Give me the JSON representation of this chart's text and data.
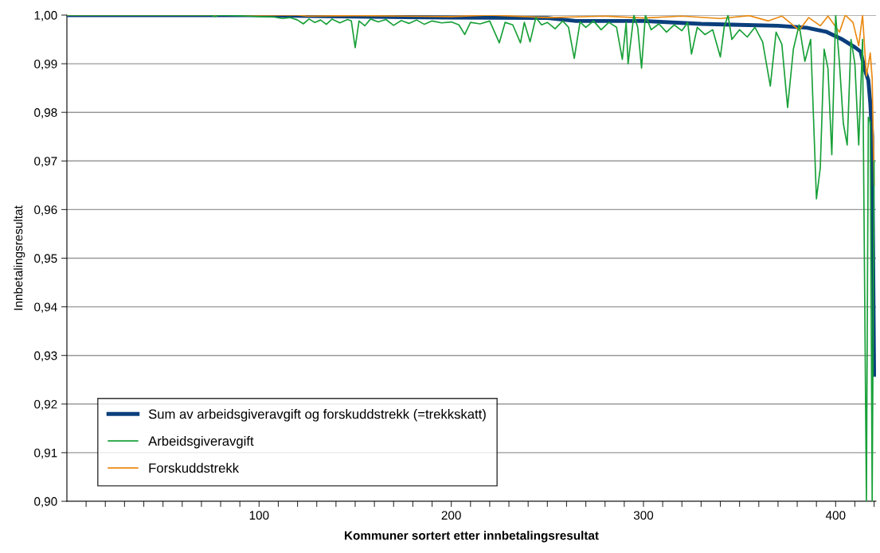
{
  "chart_data": {
    "type": "line",
    "xlabel": "Kommuner sortert etter innbetalingsresultat",
    "ylabel": "Innbetalingsresultat",
    "xlim": [
      0,
      421
    ],
    "xticks": [
      {
        "value": 10,
        "label": null
      },
      {
        "value": 20,
        "label": null
      },
      {
        "value": 30,
        "label": null
      },
      {
        "value": 40,
        "label": null
      },
      {
        "value": 50,
        "label": null
      },
      {
        "value": 60,
        "label": null
      },
      {
        "value": 70,
        "label": null
      },
      {
        "value": 80,
        "label": null
      },
      {
        "value": 90,
        "label": null
      },
      100,
      {
        "value": 110,
        "label": null
      },
      {
        "value": 120,
        "label": null
      },
      {
        "value": 130,
        "label": null
      },
      {
        "value": 140,
        "label": null
      },
      {
        "value": 150,
        "label": null
      },
      {
        "value": 160,
        "label": null
      },
      {
        "value": 170,
        "label": null
      },
      {
        "value": 180,
        "label": null
      },
      {
        "value": 190,
        "label": null
      },
      200,
      {
        "value": 210,
        "label": null
      },
      {
        "value": 220,
        "label": null
      },
      {
        "value": 230,
        "label": null
      },
      {
        "value": 240,
        "label": null
      },
      {
        "value": 250,
        "label": null
      },
      {
        "value": 260,
        "label": null
      },
      {
        "value": 270,
        "label": null
      },
      {
        "value": 280,
        "label": null
      },
      {
        "value": 290,
        "label": null
      },
      300,
      {
        "value": 310,
        "label": null
      },
      {
        "value": 320,
        "label": null
      },
      {
        "value": 330,
        "label": null
      },
      {
        "value": 340,
        "label": null
      },
      {
        "value": 350,
        "label": null
      },
      {
        "value": 360,
        "label": null
      },
      {
        "value": 370,
        "label": null
      },
      {
        "value": 380,
        "label": null
      },
      {
        "value": 390,
        "label": null
      },
      400,
      {
        "value": 410,
        "label": null
      },
      {
        "value": 420,
        "label": null
      }
    ],
    "ylim": [
      0.9,
      1.0
    ],
    "yticks": [
      {
        "value": 0.9,
        "label": "0,90"
      },
      {
        "value": 0.91,
        "label": "0,91"
      },
      {
        "value": 0.92,
        "label": "0,92"
      },
      {
        "value": 0.93,
        "label": "0,93"
      },
      {
        "value": 0.94,
        "label": "0,94"
      },
      {
        "value": 0.95,
        "label": "0,95"
      },
      {
        "value": 0.96,
        "label": "0,96"
      },
      {
        "value": 0.97,
        "label": "0,97"
      },
      {
        "value": 0.98,
        "label": "0,98"
      },
      {
        "value": 0.99,
        "label": "0,99"
      },
      {
        "value": 1.0,
        "label": "1,00"
      }
    ],
    "grid": "y",
    "legend": "bottom left",
    "marker": "none",
    "line_style": "solid",
    "series": [
      {
        "name": "Sum av arbeidsgiveravgift og forskuddstrekk (=trekkskatt)",
        "color": "#0b3f7c",
        "x": [
          0,
          100,
          110,
          150,
          200,
          250,
          265,
          300,
          330,
          350,
          370,
          385,
          395,
          403,
          410,
          413,
          415,
          417,
          418,
          419,
          420
        ],
        "values": [
          1.0,
          1.0,
          0.9999,
          0.9997,
          0.9995,
          0.9994,
          0.9988,
          0.9988,
          0.9982,
          0.998,
          0.9978,
          0.9974,
          0.9966,
          0.9951,
          0.9934,
          0.9925,
          0.989,
          0.9866,
          0.982,
          0.975,
          0.926
        ]
      },
      {
        "name": "Arbeidsgiveravgift",
        "color": "#18a038",
        "x": [
          0,
          75,
          77,
          79,
          95,
          100,
          108,
          112,
          116,
          120,
          123,
          126,
          129,
          132,
          135,
          138,
          142,
          146,
          148,
          150,
          152,
          155,
          158,
          162,
          166,
          170,
          174,
          178,
          182,
          186,
          190,
          195,
          200,
          204,
          207,
          210,
          215,
          220,
          225,
          228,
          232,
          236,
          238,
          241,
          244,
          247,
          250,
          254,
          258,
          261,
          264,
          267,
          270,
          274,
          278,
          282,
          286,
          289,
          291,
          292,
          295,
          297,
          299,
          301,
          304,
          308,
          312,
          316,
          320,
          323,
          325,
          328,
          332,
          336,
          340,
          342,
          344,
          346,
          350,
          354,
          358,
          362,
          366,
          369,
          372,
          375,
          378,
          381,
          384,
          387,
          390,
          392,
          394,
          396,
          398,
          400,
          402,
          404,
          406,
          408,
          410,
          412,
          414,
          416,
          417,
          418,
          419,
          420
        ],
        "values": [
          1.0,
          1.0,
          0.9997,
          1.0,
          0.9998,
          0.9997,
          0.9996,
          0.9993,
          0.9995,
          0.999,
          0.9982,
          0.9992,
          0.9985,
          0.999,
          0.9981,
          0.9992,
          0.9984,
          0.9991,
          0.9988,
          0.9933,
          0.9988,
          0.9978,
          0.9992,
          0.9986,
          0.9991,
          0.9979,
          0.9989,
          0.9983,
          0.999,
          0.9981,
          0.9988,
          0.9984,
          0.9986,
          0.998,
          0.996,
          0.9985,
          0.9982,
          0.9988,
          0.9943,
          0.9985,
          0.998,
          0.9943,
          0.9985,
          0.9945,
          0.9995,
          0.998,
          0.9985,
          0.9972,
          0.9988,
          0.9975,
          0.9911,
          0.9986,
          0.9975,
          0.9988,
          0.997,
          0.9985,
          0.9975,
          0.9909,
          0.9985,
          0.99,
          1.0,
          0.9975,
          0.9891,
          1.0,
          0.997,
          0.9982,
          0.9965,
          0.998,
          0.9968,
          0.9985,
          0.992,
          0.9975,
          0.996,
          0.997,
          0.9914,
          0.9975,
          1.0,
          0.995,
          0.997,
          0.9955,
          0.9975,
          0.9945,
          0.9854,
          0.9965,
          0.994,
          0.981,
          0.993,
          0.998,
          0.9905,
          0.995,
          0.9622,
          0.9686,
          0.993,
          0.989,
          0.9713,
          1.0,
          0.99,
          0.9777,
          0.9733,
          0.995,
          0.99,
          0.9733,
          0.995,
          0.9,
          0.979,
          0.978,
          0.9,
          0.97
        ]
      },
      {
        "name": "Forskuddstrekk",
        "color": "#ea8a12",
        "x": [
          0,
          120,
          125,
          150,
          200,
          220,
          250,
          280,
          300,
          320,
          340,
          355,
          365,
          372,
          381,
          386,
          392,
          396,
          402,
          405,
          409,
          412,
          414,
          416,
          418,
          419,
          420
        ],
        "values": [
          1.0,
          1.0,
          0.9998,
          0.9999,
          0.9997,
          1.0,
          0.9995,
          0.9998,
          0.9994,
          0.9998,
          0.9993,
          0.9999,
          0.9988,
          0.9998,
          0.9969,
          0.9995,
          0.9978,
          0.9998,
          0.9965,
          1.0,
          0.9985,
          0.9937,
          1.0,
          0.9875,
          0.9922,
          0.987,
          0.965
        ]
      }
    ]
  }
}
